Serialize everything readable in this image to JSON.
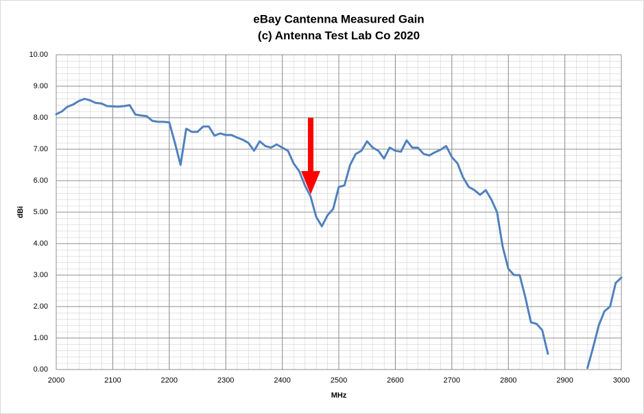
{
  "chart_data": {
    "type": "line",
    "title": "eBay Cantenna Measured Gain",
    "subtitle": "(c) Antenna Test Lab Co 2020",
    "x_label": "MHz",
    "y_label": "dBi",
    "xlim": [
      2000,
      3000
    ],
    "ylim": [
      0,
      10
    ],
    "xticks": [
      2000,
      2100,
      2200,
      2300,
      2400,
      2500,
      2600,
      2700,
      2800,
      2900,
      3000
    ],
    "yticks": [
      {
        "value": 0,
        "label": "0.00"
      },
      {
        "value": 1,
        "label": "1.00"
      },
      {
        "value": 2,
        "label": "2.00"
      },
      {
        "value": 3,
        "label": "3.00"
      },
      {
        "value": 4,
        "label": "4.00"
      },
      {
        "value": 5,
        "label": "5.00"
      },
      {
        "value": 6,
        "label": "6.00"
      },
      {
        "value": 7,
        "label": "7.00"
      },
      {
        "value": 8,
        "label": "8.00"
      },
      {
        "value": 9,
        "label": "9.00"
      },
      {
        "value": 10,
        "label": "10.00"
      }
    ],
    "grid": true,
    "x": [
      2000,
      2010,
      2020,
      2030,
      2040,
      2050,
      2060,
      2070,
      2080,
      2090,
      2100,
      2110,
      2120,
      2130,
      2140,
      2150,
      2160,
      2170,
      2180,
      2190,
      2200,
      2210,
      2220,
      2230,
      2240,
      2250,
      2260,
      2270,
      2280,
      2290,
      2300,
      2310,
      2320,
      2330,
      2340,
      2350,
      2360,
      2370,
      2380,
      2390,
      2400,
      2410,
      2420,
      2430,
      2440,
      2450,
      2460,
      2470,
      2480,
      2490,
      2500,
      2510,
      2520,
      2530,
      2540,
      2550,
      2560,
      2570,
      2580,
      2590,
      2600,
      2610,
      2620,
      2630,
      2640,
      2650,
      2660,
      2670,
      2680,
      2690,
      2700,
      2710,
      2720,
      2730,
      2740,
      2750,
      2760,
      2770,
      2780,
      2790,
      2800,
      2810,
      2820,
      2830,
      2840,
      2850,
      2860,
      2870,
      2880,
      2890,
      2900,
      2910,
      2920,
      2930,
      2940,
      2950,
      2960,
      2970,
      2980,
      2990,
      3000
    ],
    "series": [
      {
        "name": "dBi",
        "color": "#4f81bd",
        "values": [
          8.11,
          8.2,
          8.35,
          8.42,
          8.53,
          8.6,
          8.55,
          8.47,
          8.45,
          8.37,
          8.36,
          8.35,
          8.37,
          8.4,
          8.1,
          8.07,
          8.05,
          7.9,
          7.87,
          7.87,
          7.85,
          7.2,
          6.5,
          7.65,
          7.55,
          7.55,
          7.72,
          7.72,
          7.43,
          7.5,
          7.45,
          7.45,
          7.37,
          7.3,
          7.2,
          6.95,
          7.25,
          7.1,
          7.05,
          7.15,
          7.05,
          6.95,
          6.55,
          6.3,
          5.85,
          5.5,
          4.85,
          4.55,
          4.9,
          5.1,
          5.8,
          5.85,
          6.5,
          6.85,
          6.95,
          7.25,
          7.05,
          6.95,
          6.7,
          7.05,
          6.95,
          6.92,
          7.28,
          7.05,
          7.05,
          6.85,
          6.8,
          6.9,
          6.98,
          7.1,
          6.75,
          6.55,
          6.1,
          5.8,
          5.7,
          5.55,
          5.7,
          5.4,
          5.0,
          3.9,
          3.2,
          3.0,
          3.0,
          2.3,
          1.5,
          1.45,
          1.25,
          0.5,
          null,
          null,
          null,
          null,
          null,
          null,
          0.05,
          0.7,
          1.4,
          1.85,
          2.0,
          2.75,
          2.92
        ]
      }
    ]
  }
}
